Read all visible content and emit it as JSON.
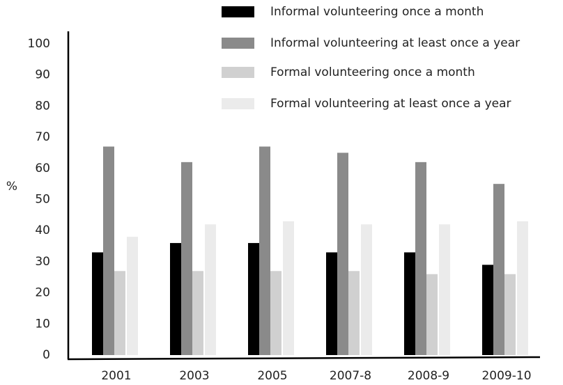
{
  "chart_data": {
    "type": "bar",
    "y_label": "%",
    "categories": [
      "2001",
      "2003",
      "2005",
      "2007-8",
      "2008-9",
      "2009-10"
    ],
    "series": [
      {
        "name": "Informal volunteering once a month",
        "color": "#000000",
        "values": [
          33,
          36,
          36,
          33,
          33,
          29
        ]
      },
      {
        "name": "Informal volunteering at least once a year",
        "color": "#8a8a8a",
        "values": [
          67,
          62,
          67,
          65,
          62,
          55
        ]
      },
      {
        "name": "Formal volunteering once a month",
        "color": "#d0d0d0",
        "values": [
          27,
          27,
          27,
          27,
          26,
          26
        ]
      },
      {
        "name": "Formal volunteering at least once a year",
        "color": "#ebebeb",
        "values": [
          38,
          42,
          43,
          42,
          42,
          43
        ]
      }
    ],
    "ylim": [
      0,
      100
    ],
    "yticks": [
      0,
      10,
      20,
      30,
      40,
      50,
      60,
      70,
      80,
      90,
      100
    ],
    "grid": false
  }
}
